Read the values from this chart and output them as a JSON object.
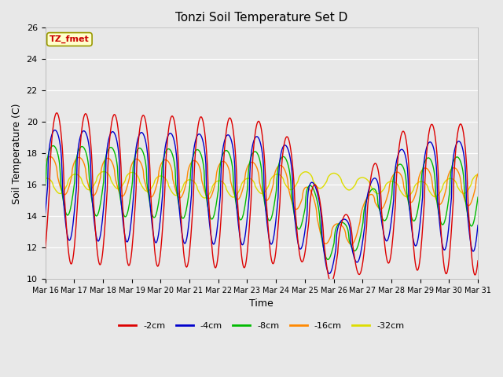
{
  "title": "Tonzi Soil Temperature Set D",
  "xlabel": "Time",
  "ylabel": "Soil Temperature (C)",
  "ylim": [
    10,
    26
  ],
  "background_color": "#e8e8e8",
  "annotation_text": "TZ_fmet",
  "annotation_color": "#cc0000",
  "annotation_bg": "#ffffcc",
  "annotation_border": "#999900",
  "series_colors": {
    "-2cm": "#dd0000",
    "-4cm": "#0000cc",
    "-8cm": "#00bb00",
    "-16cm": "#ff8800",
    "-32cm": "#dddd00"
  },
  "tick_labels": [
    "Mar 16",
    "Mar 17",
    "Mar 18",
    "Mar 19",
    "Mar 20",
    "Mar 21",
    "Mar 22",
    "Mar 23",
    "Mar 24",
    "Mar 25",
    "Mar 26",
    "Mar 27",
    "Mar 28",
    "Mar 29",
    "Mar 30",
    "Mar 31"
  ],
  "yticks": [
    10,
    12,
    14,
    16,
    18,
    20,
    22,
    24,
    26
  ],
  "n_days": 15,
  "figsize": [
    6.4,
    4.8
  ],
  "dpi": 100
}
